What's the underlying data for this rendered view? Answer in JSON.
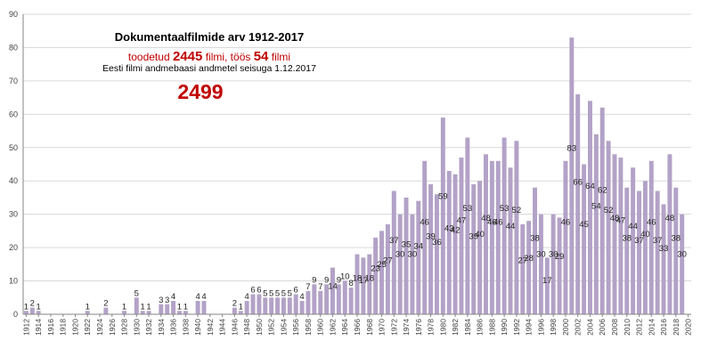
{
  "chart_data": {
    "type": "bar",
    "title": "Dokumentaalfilmide arv 1912-2017",
    "subtitle": {
      "prefix": "toodetud",
      "produced": "2445",
      "middle": "filmi, töös",
      "in_progress": "54",
      "suffix": "filmi"
    },
    "source_note": "Eesti filmi andmebaasi andmetel seisuga 1.12.2017",
    "total": "2499",
    "ylim": [
      0,
      90
    ],
    "yticks": [
      0,
      10,
      20,
      30,
      40,
      50,
      60,
      70,
      80,
      90
    ],
    "xlim": [
      1912,
      2020
    ],
    "xticks": [
      1912,
      1914,
      1916,
      1918,
      1920,
      1922,
      1924,
      1926,
      1928,
      1930,
      1932,
      1934,
      1936,
      1938,
      1940,
      1942,
      1944,
      1946,
      1948,
      1950,
      1952,
      1954,
      1956,
      1958,
      1960,
      1962,
      1964,
      1966,
      1968,
      1970,
      1972,
      1974,
      1976,
      1978,
      1980,
      1982,
      1984,
      1986,
      1988,
      1990,
      1992,
      1994,
      1996,
      1998,
      2000,
      2002,
      2004,
      2006,
      2008,
      2010,
      2012,
      2014,
      2016,
      2018,
      2020
    ],
    "bar_color": "#b3a2c7",
    "bars": [
      {
        "year": 1912,
        "value": 1
      },
      {
        "year": 1913,
        "value": 2
      },
      {
        "year": 1914,
        "value": 1
      },
      {
        "year": 1922,
        "value": 1
      },
      {
        "year": 1925,
        "value": 2
      },
      {
        "year": 1928,
        "value": 1
      },
      {
        "year": 1930,
        "value": 5
      },
      {
        "year": 1931,
        "value": 1
      },
      {
        "year": 1932,
        "value": 1
      },
      {
        "year": 1934,
        "value": 3
      },
      {
        "year": 1935,
        "value": 3
      },
      {
        "year": 1936,
        "value": 4
      },
      {
        "year": 1937,
        "value": 1
      },
      {
        "year": 1938,
        "value": 1
      },
      {
        "year": 1940,
        "value": 4
      },
      {
        "year": 1941,
        "value": 4
      },
      {
        "year": 1946,
        "value": 2
      },
      {
        "year": 1947,
        "value": 1
      },
      {
        "year": 1948,
        "value": 4
      },
      {
        "year": 1949,
        "value": 6
      },
      {
        "year": 1950,
        "value": 6
      },
      {
        "year": 1951,
        "value": 5
      },
      {
        "year": 1952,
        "value": 5
      },
      {
        "year": 1953,
        "value": 5
      },
      {
        "year": 1954,
        "value": 5
      },
      {
        "year": 1955,
        "value": 5
      },
      {
        "year": 1956,
        "value": 6
      },
      {
        "year": 1957,
        "value": 4
      },
      {
        "year": 1958,
        "value": 7
      },
      {
        "year": 1959,
        "value": 9
      },
      {
        "year": 1960,
        "value": 7
      },
      {
        "year": 1961,
        "value": 9
      },
      {
        "year": 1962,
        "value": 14
      },
      {
        "year": 1963,
        "value": 9
      },
      {
        "year": 1964,
        "value": 10
      },
      {
        "year": 1965,
        "value": 8
      },
      {
        "year": 1966,
        "value": 18
      },
      {
        "year": 1967,
        "value": 17
      },
      {
        "year": 1968,
        "value": 18
      },
      {
        "year": 1969,
        "value": 23
      },
      {
        "year": 1970,
        "value": 25
      },
      {
        "year": 1971,
        "value": 27
      },
      {
        "year": 1972,
        "value": 37
      },
      {
        "year": 1973,
        "value": 30
      },
      {
        "year": 1974,
        "value": 35
      },
      {
        "year": 1975,
        "value": 30
      },
      {
        "year": 1976,
        "value": 34
      },
      {
        "year": 1977,
        "value": 46
      },
      {
        "year": 1978,
        "value": 39
      },
      {
        "year": 1979,
        "value": 36
      },
      {
        "year": 1980,
        "value": 59
      },
      {
        "year": 1981,
        "value": 43
      },
      {
        "year": 1982,
        "value": 42
      },
      {
        "year": 1983,
        "value": 47
      },
      {
        "year": 1984,
        "value": 53
      },
      {
        "year": 1985,
        "value": 39
      },
      {
        "year": 1986,
        "value": 40
      },
      {
        "year": 1987,
        "value": 48
      },
      {
        "year": 1988,
        "value": 46
      },
      {
        "year": 1989,
        "value": 46
      },
      {
        "year": 1990,
        "value": 53
      },
      {
        "year": 1991,
        "value": 44
      },
      {
        "year": 1992,
        "value": 52
      },
      {
        "year": 1993,
        "value": 27
      },
      {
        "year": 1994,
        "value": 28
      },
      {
        "year": 1995,
        "value": 38
      },
      {
        "year": 1996,
        "value": 30
      },
      {
        "year": 1997,
        "value": 17
      },
      {
        "year": 1998,
        "value": 30
      },
      {
        "year": 1999,
        "value": 29
      },
      {
        "year": 2000,
        "value": 46
      },
      {
        "year": 2001,
        "value": 83
      },
      {
        "year": 2002,
        "value": 66
      },
      {
        "year": 2003,
        "value": 45
      },
      {
        "year": 2004,
        "value": 64
      },
      {
        "year": 2005,
        "value": 54
      },
      {
        "year": 2006,
        "value": 62
      },
      {
        "year": 2007,
        "value": 52
      },
      {
        "year": 2008,
        "value": 48
      },
      {
        "year": 2009,
        "value": 47
      },
      {
        "year": 2010,
        "value": 38
      },
      {
        "year": 2011,
        "value": 44
      },
      {
        "year": 2012,
        "value": 37
      },
      {
        "year": 2013,
        "value": 40
      },
      {
        "year": 2014,
        "value": 46
      },
      {
        "year": 2015,
        "value": 37
      },
      {
        "year": 2016,
        "value": 33
      },
      {
        "year": 2017,
        "value": 48
      },
      {
        "year": 2018,
        "value": 38
      },
      {
        "year": 2019,
        "value": 30
      }
    ]
  }
}
